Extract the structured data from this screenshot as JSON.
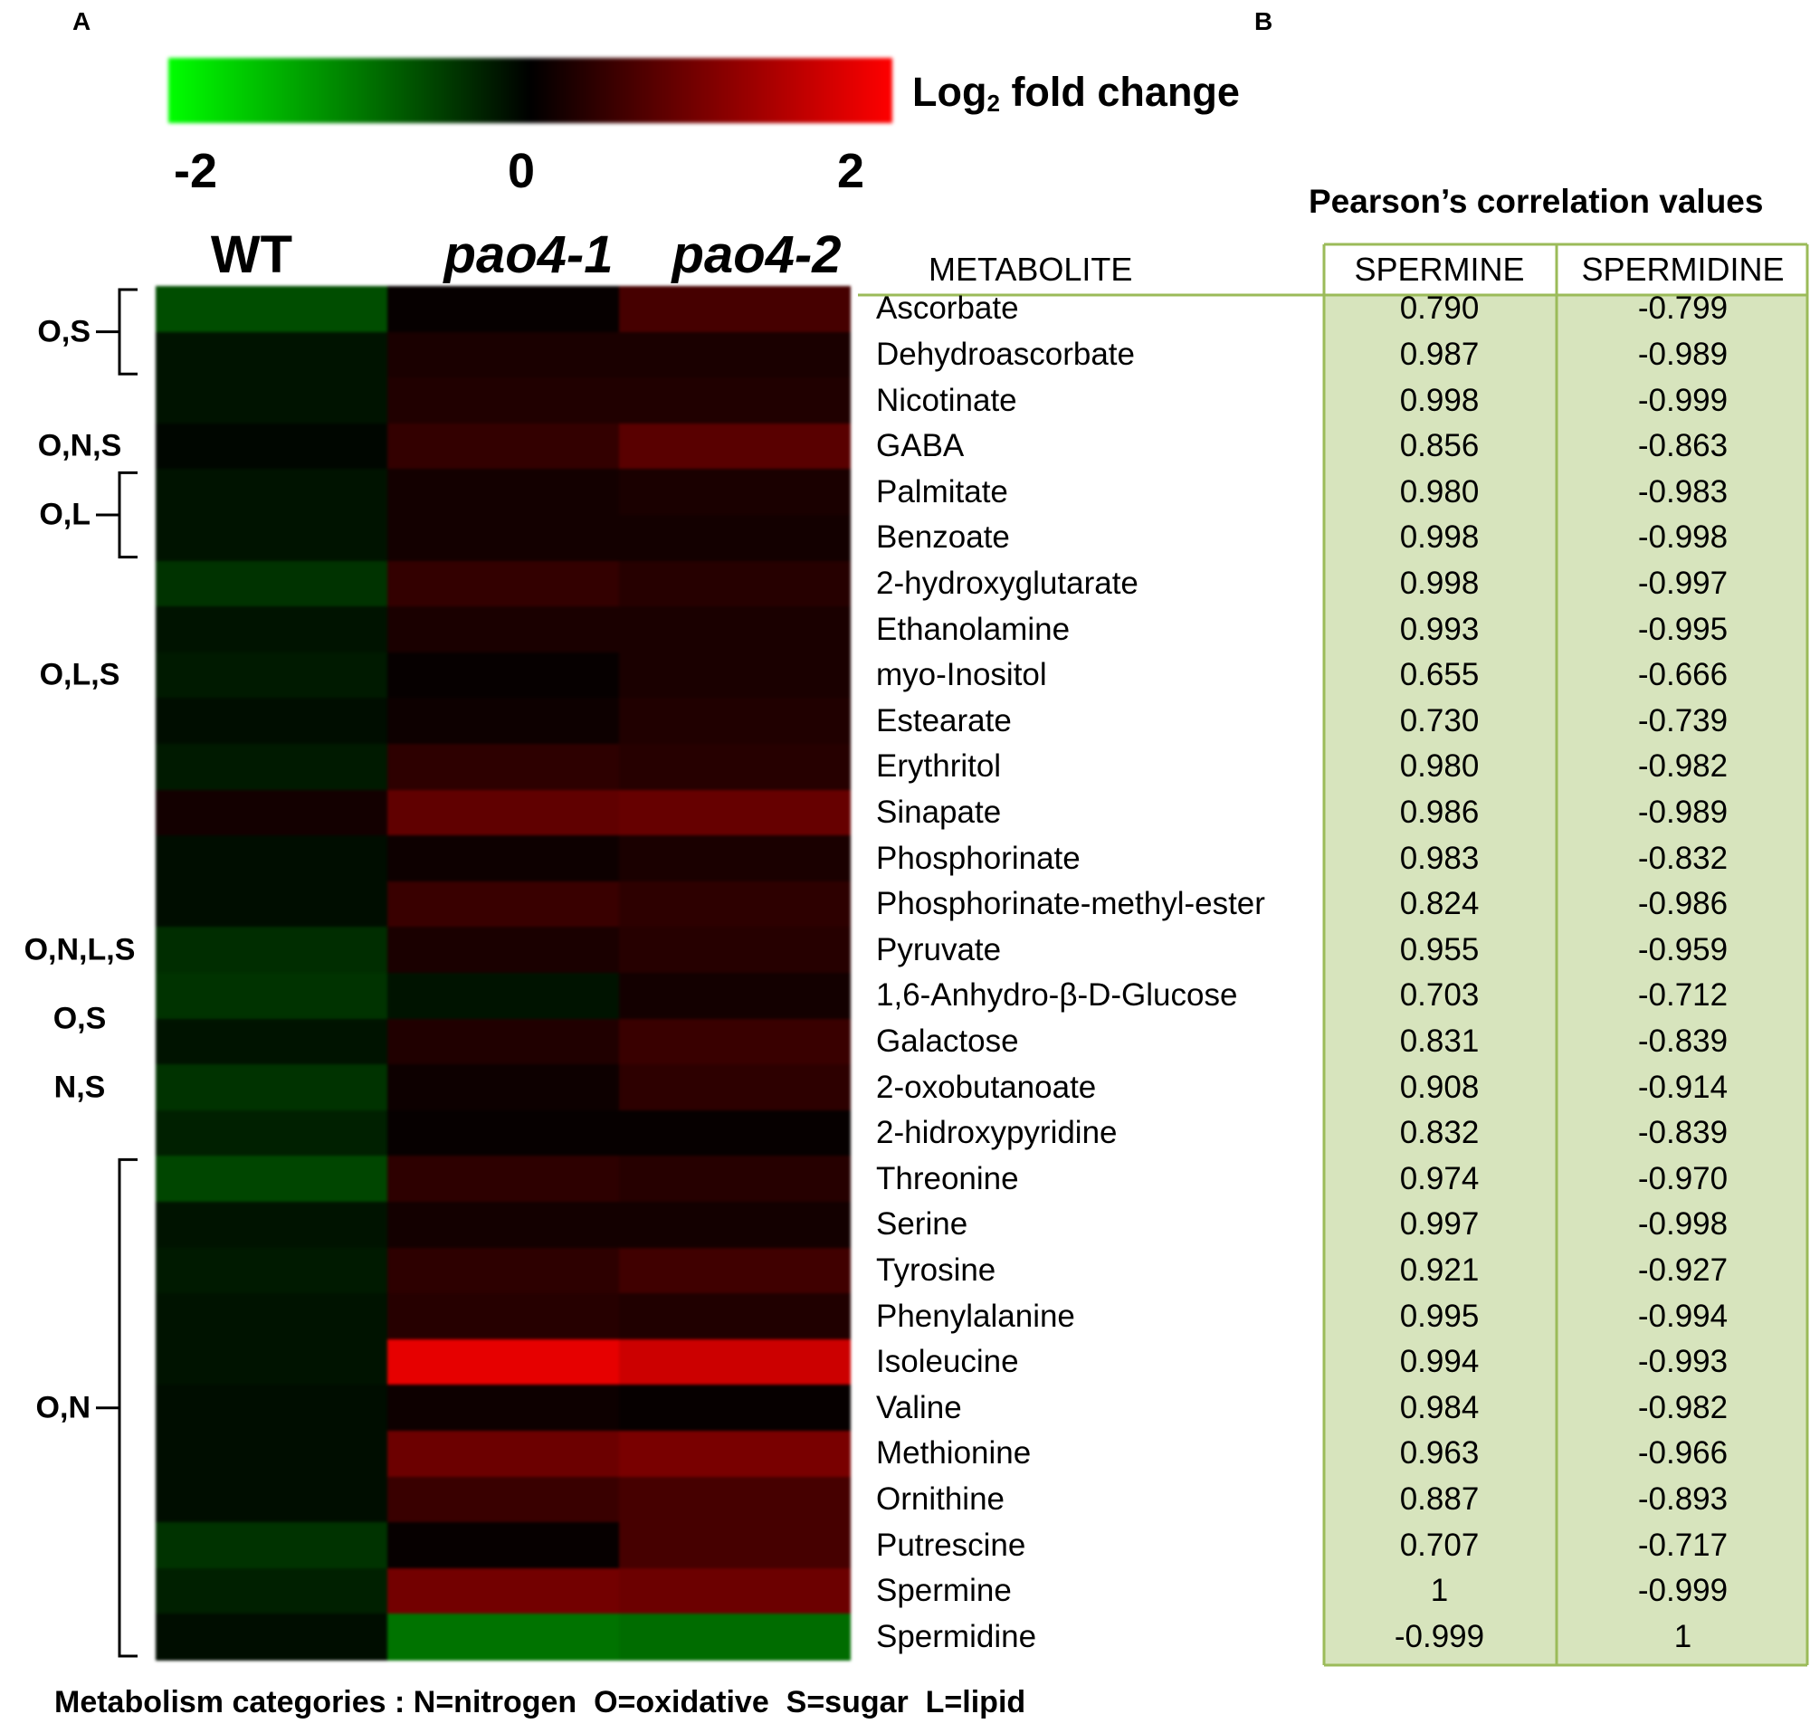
{
  "panel_a_label": "A",
  "panel_b_label": "B",
  "colorbar": {
    "title_main": "Log",
    "title_sub": "2",
    "title_rest": " fold change",
    "ticks": [
      "-2",
      "0",
      "2"
    ],
    "range": [
      -2,
      2
    ],
    "colors": {
      "low": "#00ff00",
      "mid": "#000000",
      "high": "#ff0000"
    }
  },
  "columns": [
    "WT",
    "pao4-1",
    "pao4-2"
  ],
  "metabolite_header": "METABOLITE",
  "pearson_title": "Pearson’s correlation values",
  "correlation_headers": [
    "SPERMINE",
    "SPERMIDINE"
  ],
  "categories": [
    {
      "label": "O,S",
      "rows": [
        0,
        1
      ],
      "bracket": true
    },
    {
      "label": "O,N,S",
      "rows": [
        3,
        3
      ],
      "bracket": false
    },
    {
      "label": "O,L",
      "rows": [
        4,
        5
      ],
      "bracket": true
    },
    {
      "label": "O,L,S",
      "rows": [
        8,
        8
      ],
      "bracket": false
    },
    {
      "label": "O,N,L,S",
      "rows": [
        14,
        14
      ],
      "bracket": false
    },
    {
      "label": "O,S",
      "rows": [
        15,
        16
      ],
      "bracket": false
    },
    {
      "label": "N,S",
      "rows": [
        17,
        17
      ],
      "bracket": false
    },
    {
      "label": "O,N",
      "rows": [
        19,
        29
      ],
      "bracket": true
    }
  ],
  "footnote": "Metabolism categories : N=nitrogen  O=oxidative  S=sugar  L=lipid",
  "chart_data": {
    "type": "heatmap",
    "columns": [
      "WT",
      "pao4-1",
      "pao4-2"
    ],
    "rows": [
      {
        "metabolite": "Ascorbate",
        "log2fc": [
          -0.6,
          0.05,
          0.55
        ],
        "spermine": "0.790",
        "spermidine": "-0.799"
      },
      {
        "metabolite": "Dehydroascorbate",
        "log2fc": [
          -0.15,
          0.2,
          0.2
        ],
        "spermine": "0.987",
        "spermidine": "-0.989"
      },
      {
        "metabolite": "Nicotinate",
        "log2fc": [
          -0.15,
          0.25,
          0.25
        ],
        "spermine": "0.998",
        "spermidine": "-0.999"
      },
      {
        "metabolite": "GABA",
        "log2fc": [
          -0.05,
          0.4,
          0.7
        ],
        "spermine": "0.856",
        "spermidine": "-0.863"
      },
      {
        "metabolite": "Palmitate",
        "log2fc": [
          -0.15,
          0.15,
          0.2
        ],
        "spermine": "0.980",
        "spermidine": "-0.983"
      },
      {
        "metabolite": "Benzoate",
        "log2fc": [
          -0.15,
          0.15,
          0.15
        ],
        "spermine": "0.998",
        "spermidine": "-0.998"
      },
      {
        "metabolite": "2-hydroxyglutarate",
        "log2fc": [
          -0.4,
          0.4,
          0.3
        ],
        "spermine": "0.998",
        "spermidine": "-0.997"
      },
      {
        "metabolite": "Ethanolamine",
        "log2fc": [
          -0.15,
          0.2,
          0.2
        ],
        "spermine": "0.993",
        "spermidine": "-0.995"
      },
      {
        "metabolite": "myo-Inositol",
        "log2fc": [
          -0.2,
          0.05,
          0.2
        ],
        "spermine": "0.655",
        "spermidine": "-0.666"
      },
      {
        "metabolite": "Estearate",
        "log2fc": [
          -0.1,
          0.1,
          0.25
        ],
        "spermine": "0.730",
        "spermidine": "-0.739"
      },
      {
        "metabolite": "Erythritol",
        "log2fc": [
          -0.2,
          0.35,
          0.3
        ],
        "spermine": "0.980",
        "spermidine": "-0.982"
      },
      {
        "metabolite": "Sinapate",
        "log2fc": [
          0.15,
          0.75,
          0.8
        ],
        "spermine": "0.986",
        "spermidine": "-0.989"
      },
      {
        "metabolite": "Phosphorinate",
        "log2fc": [
          -0.1,
          0.1,
          0.2
        ],
        "spermine": "0.983",
        "spermidine": "-0.832"
      },
      {
        "metabolite": "Phosphorinate-methyl-ester",
        "log2fc": [
          -0.1,
          0.45,
          0.35
        ],
        "spermine": "0.824",
        "spermidine": "-0.986"
      },
      {
        "metabolite": "Pyruvate",
        "log2fc": [
          -0.35,
          0.2,
          0.3
        ],
        "spermine": "0.955",
        "spermidine": "-0.959"
      },
      {
        "metabolite": "1,6-Anhydro-β-D-Glucose",
        "log2fc": [
          -0.4,
          -0.15,
          0.15
        ],
        "spermine": "0.703",
        "spermidine": "-0.712"
      },
      {
        "metabolite": "Galactose",
        "log2fc": [
          -0.15,
          0.25,
          0.45
        ],
        "spermine": "0.831",
        "spermidine": "-0.839"
      },
      {
        "metabolite": "2-oxobutanoate",
        "log2fc": [
          -0.4,
          0.1,
          0.35
        ],
        "spermine": "0.908",
        "spermidine": "-0.914"
      },
      {
        "metabolite": "2-hidroxypyridine",
        "log2fc": [
          -0.25,
          0.05,
          0.05
        ],
        "spermine": "0.832",
        "spermidine": "-0.839"
      },
      {
        "metabolite": "Threonine",
        "log2fc": [
          -0.55,
          0.35,
          0.3
        ],
        "spermine": "0.974",
        "spermidine": "-0.970"
      },
      {
        "metabolite": "Serine",
        "log2fc": [
          -0.15,
          0.15,
          0.15
        ],
        "spermine": "0.997",
        "spermidine": "-0.998"
      },
      {
        "metabolite": "Tyrosine",
        "log2fc": [
          -0.2,
          0.35,
          0.5
        ],
        "spermine": "0.921",
        "spermidine": "-0.927"
      },
      {
        "metabolite": "Phenylalanine",
        "log2fc": [
          -0.15,
          0.3,
          0.25
        ],
        "spermine": "0.995",
        "spermidine": "-0.994"
      },
      {
        "metabolite": "Isoleucine",
        "log2fc": [
          -0.15,
          1.8,
          1.6
        ],
        "spermine": "0.994",
        "spermidine": "-0.993"
      },
      {
        "metabolite": "Valine",
        "log2fc": [
          -0.1,
          0.1,
          0.05
        ],
        "spermine": "0.984",
        "spermidine": "-0.982"
      },
      {
        "metabolite": "Methionine",
        "log2fc": [
          -0.1,
          0.85,
          0.95
        ],
        "spermine": "0.963",
        "spermidine": "-0.966"
      },
      {
        "metabolite": "Ornithine",
        "log2fc": [
          -0.1,
          0.45,
          0.55
        ],
        "spermine": "0.887",
        "spermidine": "-0.893"
      },
      {
        "metabolite": "Putrescine",
        "log2fc": [
          -0.4,
          0.05,
          0.55
        ],
        "spermine": "0.707",
        "spermidine": "-0.717"
      },
      {
        "metabolite": "Spermine",
        "log2fc": [
          -0.25,
          0.9,
          0.85
        ],
        "spermine": "1",
        "spermidine": "-0.999"
      },
      {
        "metabolite": "Spermidine",
        "log2fc": [
          -0.1,
          -0.9,
          -0.85
        ],
        "spermine": "-0.999",
        "spermidine": "1"
      }
    ]
  }
}
